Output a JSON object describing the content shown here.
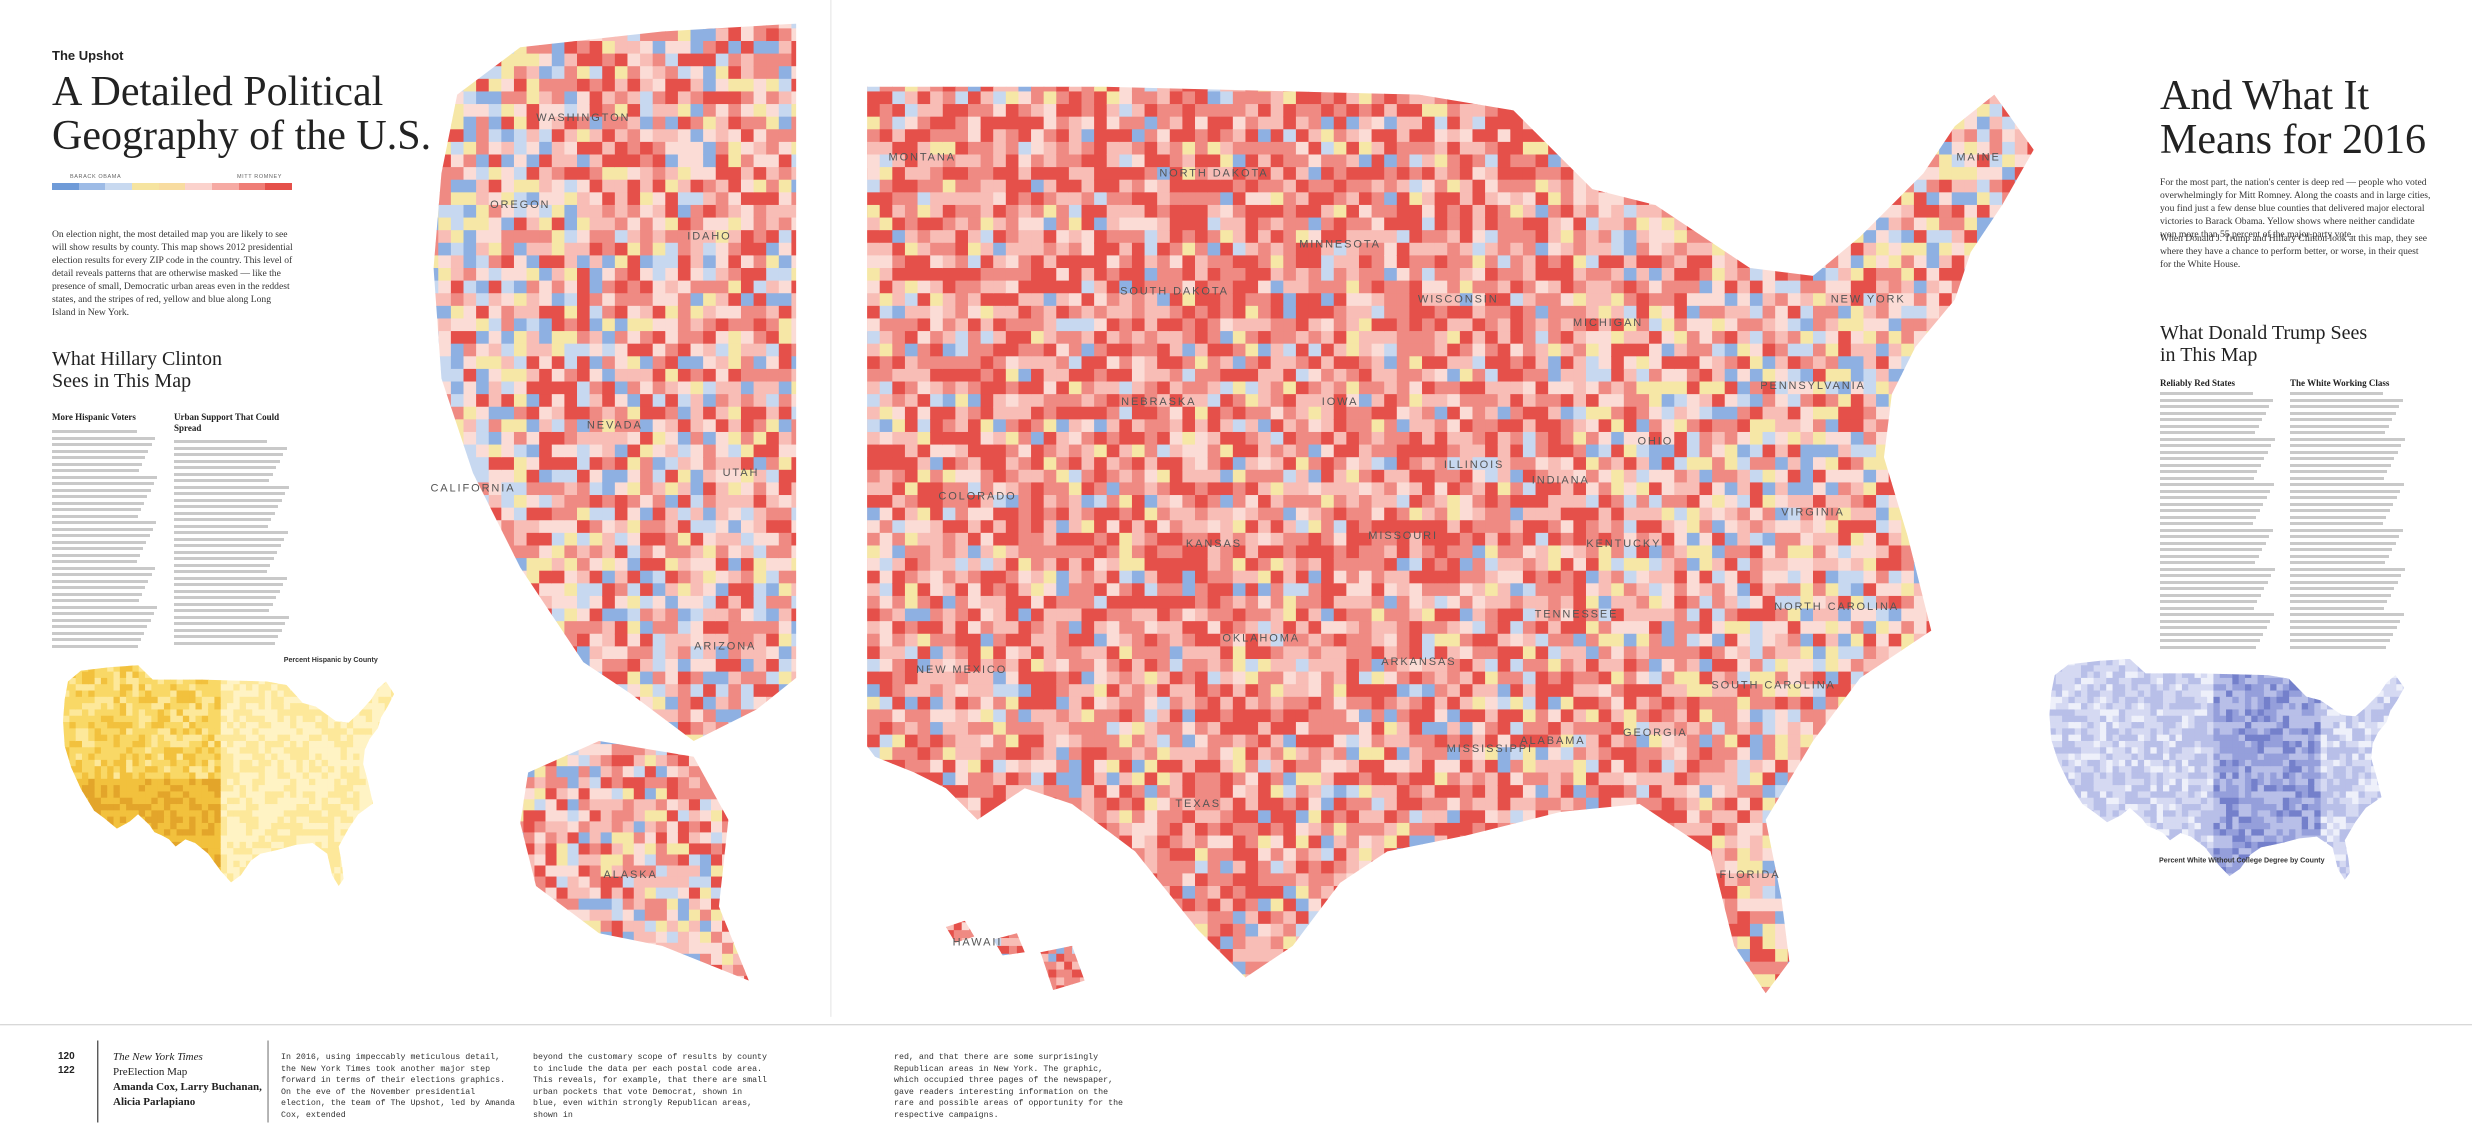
{
  "header": {
    "brand": "The Upshot"
  },
  "left": {
    "title": "A Detailed Political Geography of the U.S.",
    "legend": {
      "dem": "BARACK OBAMA",
      "rep": "MITT ROMNEY"
    },
    "intro": "On election night, the most detailed map you are likely to see will show results by county. This map shows 2012 presidential election results for every ZIP code in the country. This level of detail reveals patterns that are otherwise masked — like the presence of small, Democratic urban areas even in the reddest states, and the stripes of red, yellow and blue along Long Island in New York.",
    "section_title": "What Hillary Clinton Sees in This Map",
    "subheads": [
      "More Hispanic Voters",
      "Urban Support That Could Spread"
    ],
    "inset_title": "Percent Hispanic by County"
  },
  "right": {
    "title": "And What It Means for 2016",
    "intro": [
      "For the most part, the nation's center is deep red — people who voted overwhelmingly for Mitt Romney. Along the coasts and in large cities, you find just a few dense blue counties that delivered major electoral victories to Barack Obama. Yellow shows where neither candidate won more than 55 percent of the major-party vote.",
      "When Donald J. Trump and Hillary Clinton look at this map, they see where they have a chance to perform better, or worse, in their quest for the White House."
    ],
    "section_title": "What Donald Trump Sees in This Map",
    "subheads": [
      "Reliably Red States",
      "The White Working Class"
    ],
    "inset_title": "Percent White Without College Degree by County"
  },
  "map": {
    "states": [
      "WASHINGTON",
      "OREGON",
      "IDAHO",
      "NEVADA",
      "CALIFORNIA",
      "UTAH",
      "ARIZONA",
      "ALASKA",
      "MONTANA",
      "NORTH DAKOTA",
      "SOUTH DAKOTA",
      "MINNESOTA",
      "WISCONSIN",
      "MICHIGAN",
      "NEBRASKA",
      "IOWA",
      "COLORADO",
      "KANSAS",
      "MISSOURI",
      "ILLINOIS",
      "INDIANA",
      "OHIO",
      "PENNSYLVANIA",
      "NEW YORK",
      "MAINE",
      "NEW MEXICO",
      "OKLAHOMA",
      "TEXAS",
      "ARKANSAS",
      "MISSISSIPPI",
      "ALABAMA",
      "GEORGIA",
      "FLORIDA",
      "TENNESSEE",
      "KENTUCKY",
      "VIRGINIA",
      "NORTH CAROLINA",
      "SOUTH CAROLINA",
      "HAWAII"
    ]
  },
  "footer": {
    "pages": [
      120,
      122
    ],
    "publication": "The New York Times",
    "work": "PreElection Map",
    "authors": "Amanda Cox, Larry Buchanan, Alicia Parlapiano",
    "caption": [
      "In 2016, using impeccably meticulous detail, the New York Times took another major step forward in terms of their elections graphics. On the eve of the November presidential election, the team of The Upshot, led by Amanda Cox, extended",
      "beyond the customary scope of results by county to include the data per each postal code area. This reveals, for example, that there are small urban pockets that vote Democrat, shown in blue, even within strongly Republican areas, shown in",
      "red, and that there are some surprisingly Republican areas in New York. The graphic, which occupied three pages of the newspaper, gave readers interesting information on the rare and possible areas of opportunity for the respective campaigns."
    ]
  }
}
